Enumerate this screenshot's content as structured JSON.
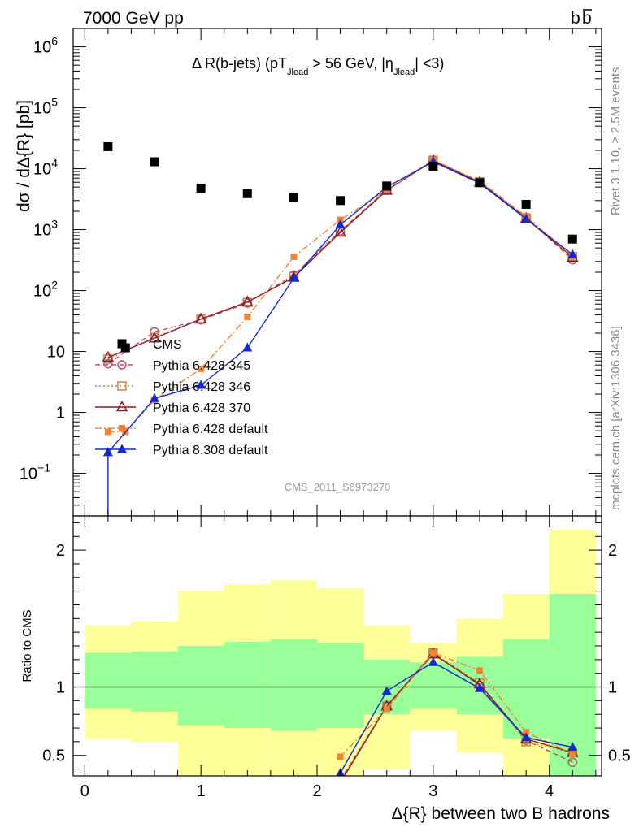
{
  "header": {
    "left": "7000 GeV pp",
    "right_base": "b",
    "right_bar": "b"
  },
  "side_labels": {
    "top": "Rivet 3.1.10, ≥ 2.5M events",
    "bottom": "mcplots.cern.ch [arXiv:1306.3436]"
  },
  "chart_data": {
    "type": "line",
    "title": {
      "main": "Δ R(b-jets) (pT",
      "sub1": "Jlead",
      "mid": " >  56 GeV, |η",
      "sub2": "Jlead",
      "end": "| <3)"
    },
    "watermark": "CMS_2011_S8973270",
    "xlabel": "Δ{R} between two B hadrons",
    "ylabel": "dσ / dΔ{R} [pb]",
    "ratio_ylabel": "Ratio to CMS",
    "xlim": [
      -0.1,
      4.45
    ],
    "ylim": [
      0.02,
      2000000
    ],
    "yscale": "log",
    "ratio_ylim": [
      0.35,
      2.25
    ],
    "x_ticks": [
      {
        "v": 0,
        "label": "0"
      },
      {
        "v": 1,
        "label": "1"
      },
      {
        "v": 2,
        "label": "2"
      },
      {
        "v": 3,
        "label": "3"
      },
      {
        "v": 4,
        "label": "4"
      }
    ],
    "y_ticks": [
      {
        "v": 0.1,
        "base": "10",
        "exp": "−1"
      },
      {
        "v": 1,
        "base": "1",
        "exp": ""
      },
      {
        "v": 10,
        "base": "10",
        "exp": ""
      },
      {
        "v": 100,
        "base": "10",
        "exp": "2"
      },
      {
        "v": 1000,
        "base": "10",
        "exp": "3"
      },
      {
        "v": 10000,
        "base": "10",
        "exp": "4"
      },
      {
        "v": 100000,
        "base": "10",
        "exp": "5"
      },
      {
        "v": 1000000,
        "base": "10",
        "exp": "6"
      }
    ],
    "ratio_ticks": [
      {
        "v": 0.5,
        "label": "0.5"
      },
      {
        "v": 1,
        "label": "1"
      },
      {
        "v": 2,
        "label": "2"
      }
    ],
    "data": {
      "name": "CMS",
      "x": [
        0.2,
        0.35,
        0.6,
        1.0,
        1.4,
        1.8,
        2.2,
        2.6,
        3.0,
        3.4,
        3.8,
        4.2
      ],
      "y": [
        23000,
        11.5,
        13000,
        4800,
        3900,
        3400,
        3000,
        5200,
        11000,
        5900,
        2600,
        700
      ]
    },
    "ratio_bands": [
      {
        "x0": 0.0,
        "x1": 0.4,
        "g": [
          0.84,
          1.25
        ],
        "yl": [
          0.62,
          1.45
        ]
      },
      {
        "x0": 0.4,
        "x1": 0.8,
        "g": [
          0.82,
          1.26
        ],
        "yl": [
          0.6,
          1.48
        ]
      },
      {
        "x0": 0.8,
        "x1": 1.2,
        "g": [
          0.72,
          1.3
        ],
        "yl": [
          0.35,
          1.7
        ]
      },
      {
        "x0": 1.2,
        "x1": 1.6,
        "g": [
          0.7,
          1.33
        ],
        "yl": [
          0.35,
          1.75
        ]
      },
      {
        "x0": 1.6,
        "x1": 2.0,
        "g": [
          0.68,
          1.35
        ],
        "yl": [
          0.35,
          1.78
        ]
      },
      {
        "x0": 2.0,
        "x1": 2.4,
        "g": [
          0.7,
          1.32
        ],
        "yl": [
          0.35,
          1.72
        ]
      },
      {
        "x0": 2.4,
        "x1": 2.8,
        "g": [
          0.8,
          1.2
        ],
        "yl": [
          0.4,
          1.45
        ]
      },
      {
        "x0": 2.8,
        "x1": 3.2,
        "g": [
          0.84,
          1.18
        ],
        "yl": [
          0.68,
          1.32
        ]
      },
      {
        "x0": 3.2,
        "x1": 3.6,
        "g": [
          0.8,
          1.22
        ],
        "yl": [
          0.52,
          1.5
        ]
      },
      {
        "x0": 3.6,
        "x1": 4.0,
        "g": [
          0.62,
          1.35
        ],
        "yl": [
          0.35,
          1.68
        ]
      },
      {
        "x0": 4.0,
        "x1": 4.4,
        "g": [
          0.35,
          1.68
        ],
        "yl": [
          0.35,
          2.15
        ]
      }
    ],
    "series": [
      {
        "name": "Pythia 6.428 345",
        "color": "#bf4c62",
        "dash": "6,4",
        "marker": "circle",
        "x": [
          0.2,
          0.6,
          1.0,
          1.4,
          1.8,
          2.2,
          2.6,
          3.0,
          3.4,
          3.8,
          4.2
        ],
        "y": [
          6.3,
          21,
          33,
          62,
          180,
          950,
          4500,
          13700,
          6000,
          1580,
          320
        ],
        "ratio": [
          null,
          null,
          null,
          null,
          null,
          0.32,
          0.86,
          1.25,
          1.01,
          0.61,
          0.45
        ]
      },
      {
        "name": "Pythia 6.428 346",
        "color": "#c0803f",
        "dash": "2,3",
        "marker": "square-open",
        "x": [
          0.2,
          0.6,
          1.0,
          1.4,
          1.8,
          2.2,
          2.6,
          3.0,
          3.4,
          3.8,
          4.2
        ],
        "y": [
          7.5,
          17,
          34,
          64,
          170,
          930,
          4450,
          13800,
          6100,
          1550,
          360
        ],
        "ratio": [
          null,
          null,
          null,
          null,
          null,
          0.31,
          0.86,
          1.25,
          1.03,
          0.6,
          0.52
        ]
      },
      {
        "name": "Pythia 6.428 370",
        "color": "#8c1a26",
        "dash": "",
        "marker": "triangle-open",
        "x": [
          0.2,
          0.6,
          1.0,
          1.4,
          1.8,
          2.2,
          2.6,
          3.0,
          3.4,
          3.8,
          4.2
        ],
        "y": [
          8,
          16.5,
          34,
          65,
          165,
          900,
          4400,
          13500,
          6000,
          1530,
          350
        ],
        "ratio": [
          null,
          null,
          null,
          null,
          null,
          0.3,
          0.86,
          1.24,
          1.02,
          0.62,
          0.52
        ]
      },
      {
        "name": "Pythia 6.428 default",
        "color": "#f58233",
        "dash": "8,3,2,3",
        "marker": "square",
        "x": [
          0.2,
          0.35,
          0.6,
          1.0,
          1.4,
          1.8,
          2.2,
          2.6,
          3.0,
          3.4,
          3.8,
          4.2
        ],
        "y": [
          0.48,
          0.48,
          1.6,
          5.2,
          37,
          360,
          1450,
          4450,
          13900,
          6300,
          1650,
          360
        ],
        "ratio": [
          null,
          null,
          null,
          null,
          null,
          null,
          0.49,
          0.84,
          1.25,
          1.12,
          0.67,
          0.51
        ]
      },
      {
        "name": "Pythia 8.308 default",
        "color": "#1428d2",
        "dash": "",
        "marker": "triangle",
        "x": [
          0.2,
          0.6,
          1.0,
          1.4,
          1.8,
          2.2,
          2.6,
          3.0,
          3.4,
          3.8,
          4.2
        ],
        "y": [
          0.22,
          1.7,
          2.8,
          11.5,
          160,
          1200,
          5000,
          13000,
          5800,
          1500,
          390
        ],
        "ratio": [
          null,
          null,
          null,
          null,
          null,
          0.37,
          0.97,
          1.18,
          0.99,
          0.63,
          0.56
        ]
      }
    ]
  }
}
